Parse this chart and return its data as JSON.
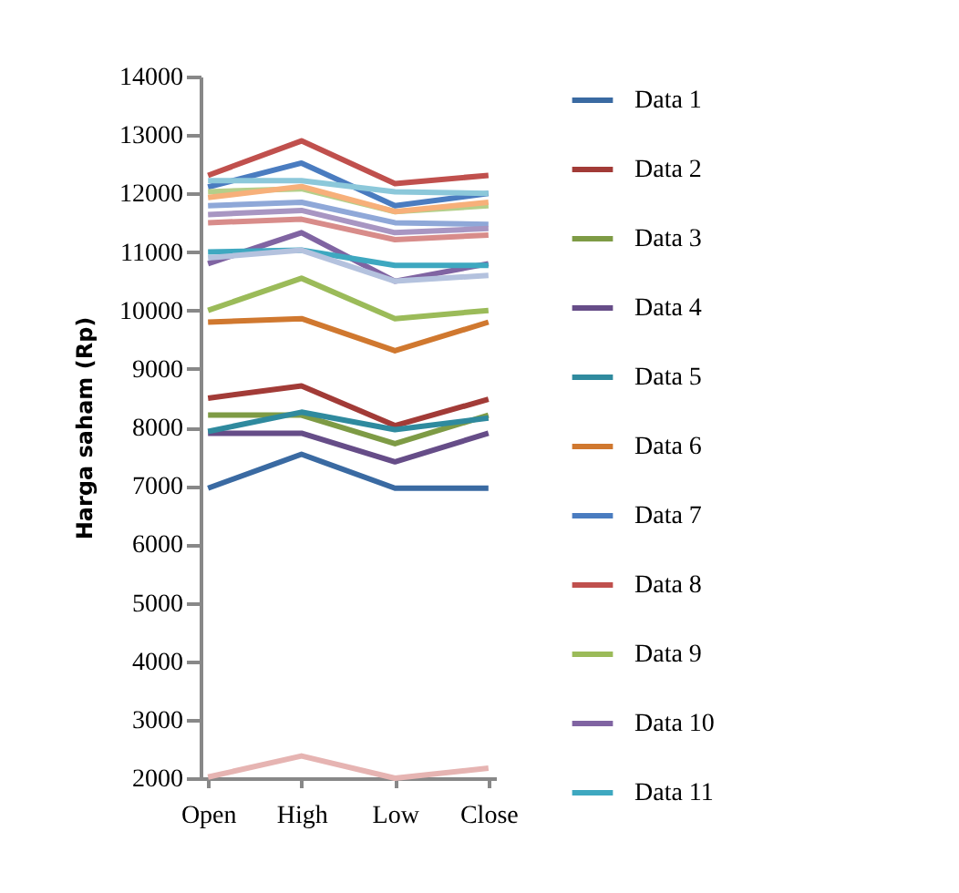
{
  "chart_data": {
    "type": "line",
    "ylabel": "Harga saham (Rp)",
    "categories": [
      "Open",
      "High",
      "Low",
      "Close"
    ],
    "ylim": [
      2000,
      14000
    ],
    "yticks": [
      2000,
      3000,
      4000,
      5000,
      6000,
      7000,
      8000,
      9000,
      10000,
      11000,
      12000,
      13000,
      14000
    ],
    "grid": false,
    "legend": "right",
    "marker": "none",
    "line_style": "solid",
    "series": [
      {
        "name": "Data 1",
        "color": "#3a6aa2",
        "values": [
          6960,
          7540,
          6960,
          6960
        ]
      },
      {
        "name": "Data 2",
        "color": "#a23b37",
        "values": [
          8500,
          8710,
          8030,
          8480
        ]
      },
      {
        "name": "Data 3",
        "color": "#7e9b45",
        "values": [
          8210,
          8210,
          7720,
          8210
        ]
      },
      {
        "name": "Data 4",
        "color": "#664d88",
        "values": [
          7900,
          7900,
          7410,
          7900
        ]
      },
      {
        "name": "Data 5",
        "color": "#2f8a9e",
        "values": [
          7930,
          8260,
          7960,
          8160
        ]
      },
      {
        "name": "Data 6",
        "color": "#d0782f",
        "values": [
          9800,
          9860,
          9310,
          9800
        ]
      },
      {
        "name": "Data 7",
        "color": "#4a7cc0",
        "values": [
          12110,
          12520,
          11790,
          12000
        ]
      },
      {
        "name": "Data 8",
        "color": "#c0504d",
        "values": [
          12310,
          12900,
          12170,
          12310
        ]
      },
      {
        "name": "Data 9",
        "color": "#9bbb59",
        "values": [
          10000,
          10550,
          9860,
          10000
        ]
      },
      {
        "name": "Data 10",
        "color": "#8064a2",
        "values": [
          10800,
          11330,
          10500,
          10800
        ]
      },
      {
        "name": "Data 11",
        "color": "#3ea8c0",
        "values": [
          11000,
          11030,
          10770,
          10770
        ]
      },
      {
        "color": "#8cc8da",
        "values": [
          12220,
          12220,
          12030,
          12000
        ]
      },
      {
        "color": "#b5cf8a",
        "values": [
          12030,
          12080,
          11690,
          11790
        ]
      },
      {
        "color": "#f7b07a",
        "values": [
          11930,
          12120,
          11690,
          11850
        ]
      },
      {
        "color": "#8fa8d8",
        "values": [
          11790,
          11850,
          11500,
          11470
        ]
      },
      {
        "color": "#a896c2",
        "values": [
          11640,
          11710,
          11330,
          11400
        ]
      },
      {
        "color": "#d88c8a",
        "values": [
          11500,
          11560,
          11210,
          11290
        ]
      },
      {
        "color": "#b4c2de",
        "values": [
          10900,
          11030,
          10500,
          10600
        ]
      },
      {
        "color": "#e6b4b2",
        "values": [
          2020,
          2380,
          2000,
          2170
        ]
      }
    ]
  }
}
